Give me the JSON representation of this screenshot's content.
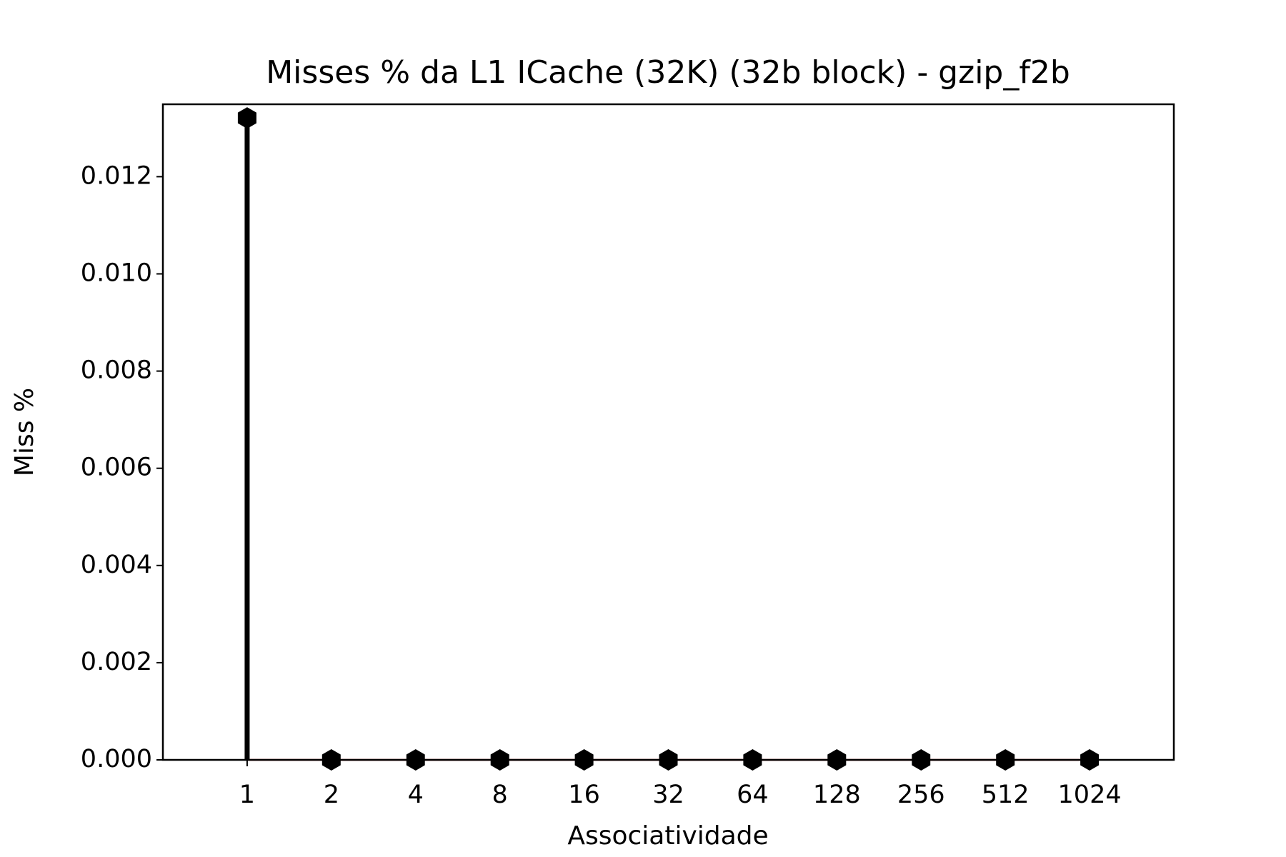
{
  "chart_data": {
    "type": "stem",
    "title": "Misses % da L1 ICache (32K) (32b block) - gzip_f2b",
    "xlabel": "Associatividade",
    "ylabel": "Miss %",
    "categories": [
      "1",
      "2",
      "4",
      "8",
      "16",
      "32",
      "64",
      "128",
      "256",
      "512",
      "1024"
    ],
    "values": [
      0.01321,
      0,
      0,
      0,
      0,
      0,
      0,
      0,
      0,
      0,
      0
    ],
    "color": "#000000",
    "baseline_color": "#d62728",
    "ylim": [
      0,
      0.01349
    ],
    "yticks": [
      {
        "value": 0,
        "label": "0.000"
      },
      {
        "value": 0.002,
        "label": "0.002"
      },
      {
        "value": 0.004,
        "label": "0.004"
      },
      {
        "value": 0.006,
        "label": "0.006"
      },
      {
        "value": 0.008,
        "label": "0.008"
      },
      {
        "value": 0.01,
        "label": "0.010"
      },
      {
        "value": 0.012,
        "label": "0.012"
      }
    ]
  }
}
